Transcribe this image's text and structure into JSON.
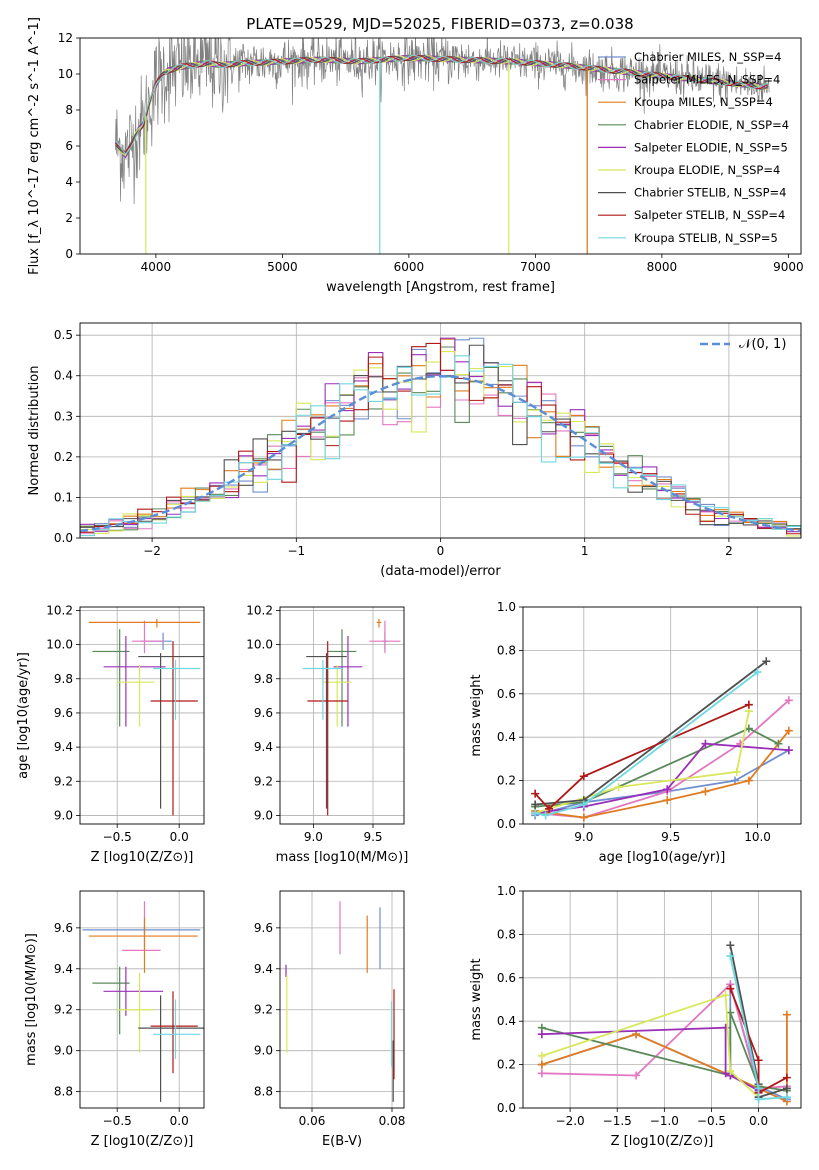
{
  "figure_title": "PLATE=0529, MJD=52025, FIBERID=0373, z=0.038",
  "palette": {
    "Chabrier MILES": "#6f8fd1",
    "Salpeter MILES": "#e377c2",
    "Kroupa MILES": "#e07b1f",
    "Chabrier ELODIE": "#5a8a5a",
    "Salpeter ELODIE": "#9b30b8",
    "Kroupa ELODIE": "#d8e85a",
    "Chabrier STELIB": "#505050",
    "Salpeter STELIB": "#b01818",
    "Kroupa STELIB": "#6fd8e0",
    "gaussian": "#5b8ed8"
  },
  "chart_data": [
    {
      "id": "spectrum",
      "type": "line",
      "title": "PLATE=0529, MJD=52025, FIBERID=0373, z=0.038",
      "xlabel": "wavelength [Angstrom, rest frame]",
      "ylabel": "Flux [f_λ 10^-17 erg cm^-2 s^-1 A^-1]",
      "xlim": [
        3400,
        9100
      ],
      "ylim": [
        0,
        12
      ],
      "xticks": [
        4000,
        5000,
        6000,
        7000,
        8000,
        9000
      ],
      "yticks": [
        0,
        2,
        4,
        6,
        8,
        10,
        12
      ],
      "grid": false,
      "legend_position": "right",
      "legend": [
        "Chabrier MILES, N_SSP=4",
        "Salpeter MILES, N_SSP=4",
        "Kroupa MILES, N_SSP=4",
        "Chabrier ELODIE, N_SSP=4",
        "Salpeter ELODIE, N_SSP=5",
        "Kroupa ELODIE, N_SSP=4",
        "Chabrier STELIB, N_SSP=4",
        "Salpeter STELIB, N_SSP=4",
        "Kroupa STELIB, N_SSP=5"
      ],
      "data_series": {
        "name": "data",
        "x": [
          3680,
          3720,
          3760,
          3800,
          3850,
          3900,
          3950,
          4000,
          4050,
          4100,
          4200,
          4300,
          4400,
          4500,
          4700,
          5000,
          5300,
          5600,
          6000,
          6400,
          6800,
          7200,
          7600,
          8000,
          8400,
          8800
        ],
        "y": [
          6.2,
          5.8,
          5.5,
          6.0,
          6.8,
          7.2,
          8.4,
          9.4,
          10.0,
          10.2,
          10.4,
          10.5,
          10.6,
          10.5,
          10.6,
          10.7,
          10.8,
          10.7,
          10.9,
          10.8,
          10.7,
          10.5,
          10.2,
          9.9,
          9.6,
          9.3
        ]
      }
    },
    {
      "id": "residuals",
      "type": "bar",
      "xlabel": "(data-model)/error",
      "ylabel": "Normed distribution",
      "xlim": [
        -2.5,
        2.5
      ],
      "ylim": [
        0,
        0.53
      ],
      "xticks": [
        -2,
        -1,
        0,
        1,
        2
      ],
      "yticks": [
        0.0,
        0.1,
        0.2,
        0.3,
        0.4,
        0.5
      ],
      "grid": true,
      "legend": [
        "N(0,1)"
      ],
      "legend_position": "upper right",
      "bin_width": 0.1,
      "series_note": "one histogram per model"
    },
    {
      "id": "age_vs_Z",
      "type": "scatter",
      "xlabel": "Z [log10(Z/Z⊙)]",
      "ylabel": "age [log10(age/yr)]",
      "xlim": [
        -0.8,
        0.2
      ],
      "ylim": [
        8.95,
        10.22
      ],
      "xticks": [
        -0.5,
        0.0
      ],
      "yticks": [
        9.0,
        9.2,
        9.4,
        9.6,
        9.8,
        10.0,
        10.2
      ],
      "grid": true,
      "points": [
        {
          "model": "Chabrier MILES",
          "x": -0.13,
          "xerr": [
            0.18,
            0.07
          ],
          "y": 10.02,
          "yerr": [
            0.05,
            0.05
          ]
        },
        {
          "model": "Salpeter MILES",
          "x": -0.28,
          "xerr": [
            0.1,
            0.16
          ],
          "y": 10.02,
          "yerr": [
            0.07,
            0.12
          ]
        },
        {
          "model": "Kroupa MILES",
          "x": -0.18,
          "xerr": [
            0.55,
            0.35
          ],
          "y": 10.13,
          "yerr": [
            0.03,
            0.02
          ]
        },
        {
          "model": "Chabrier ELODIE",
          "x": -0.48,
          "xerr": [
            0.22,
            0.08
          ],
          "y": 9.96,
          "yerr": [
            0.44,
            0.13
          ]
        },
        {
          "model": "Salpeter ELODIE",
          "x": -0.43,
          "xerr": [
            0.18,
            0.32
          ],
          "y": 9.87,
          "yerr": [
            0.35,
            0.18
          ]
        },
        {
          "model": "Kroupa ELODIE",
          "x": -0.32,
          "xerr": [
            0.18,
            0.12
          ],
          "y": 9.78,
          "yerr": [
            0.26,
            0.1
          ]
        },
        {
          "model": "Chabrier STELIB",
          "x": -0.15,
          "xerr": [
            0.18,
            0.35
          ],
          "y": 9.93,
          "yerr": [
            0.89,
            0.02
          ]
        },
        {
          "model": "Salpeter STELIB",
          "x": -0.05,
          "xerr": [
            0.18,
            0.2
          ],
          "y": 9.67,
          "yerr": [
            0.67,
            0.35
          ]
        },
        {
          "model": "Kroupa STELIB",
          "x": -0.03,
          "xerr": [
            0.18,
            0.2
          ],
          "y": 9.86,
          "yerr": [
            0.3,
            0.05
          ]
        }
      ]
    },
    {
      "id": "age_vs_mass",
      "type": "scatter",
      "xlabel": "mass [log10(M/M⊙)]",
      "ylabel": "",
      "xlim": [
        8.72,
        9.76
      ],
      "ylim": [
        8.95,
        10.22
      ],
      "xticks": [
        9.0,
        9.5
      ],
      "yticks": [
        9.0,
        9.2,
        9.4,
        9.6,
        9.8,
        10.0,
        10.2
      ],
      "grid": true,
      "points": [
        {
          "model": "Chabrier MILES",
          "x": 9.6,
          "xerr": [
            0.02,
            0.02
          ],
          "y": 10.02,
          "yerr": [
            0.05,
            0.05
          ]
        },
        {
          "model": "Salpeter MILES",
          "x": 9.6,
          "xerr": [
            0.13,
            0.13
          ],
          "y": 10.02,
          "yerr": [
            0.07,
            0.12
          ]
        },
        {
          "model": "Kroupa MILES",
          "x": 9.55,
          "xerr": [
            0.02,
            0.02
          ],
          "y": 10.13,
          "yerr": [
            0.03,
            0.02
          ]
        },
        {
          "model": "Chabrier ELODIE",
          "x": 9.24,
          "xerr": [
            0.12,
            0.12
          ],
          "y": 9.96,
          "yerr": [
            0.44,
            0.13
          ]
        },
        {
          "model": "Salpeter ELODIE",
          "x": 9.29,
          "xerr": [
            0.12,
            0.12
          ],
          "y": 9.87,
          "yerr": [
            0.35,
            0.18
          ]
        },
        {
          "model": "Kroupa ELODIE",
          "x": 9.2,
          "xerr": [
            0.12,
            0.12
          ],
          "y": 9.78,
          "yerr": [
            0.26,
            0.1
          ]
        },
        {
          "model": "Chabrier STELIB",
          "x": 9.11,
          "xerr": [
            0.17,
            0.17
          ],
          "y": 9.93,
          "yerr": [
            0.89,
            0.02
          ]
        },
        {
          "model": "Salpeter STELIB",
          "x": 9.12,
          "xerr": [
            0.17,
            0.17
          ],
          "y": 9.67,
          "yerr": [
            0.67,
            0.35
          ]
        },
        {
          "model": "Kroupa STELIB",
          "x": 9.08,
          "xerr": [
            0.17,
            0.17
          ],
          "y": 9.86,
          "yerr": [
            0.3,
            0.05
          ]
        }
      ]
    },
    {
      "id": "weight_vs_age",
      "type": "line",
      "xlabel": "age [log10(age/yr)]",
      "ylabel": "mass weight",
      "xlim": [
        8.65,
        10.25
      ],
      "ylim": [
        0,
        1
      ],
      "xticks": [
        9.0,
        9.5,
        10.0
      ],
      "yticks": [
        0.0,
        0.2,
        0.4,
        0.6,
        0.8,
        1.0
      ],
      "grid": true,
      "series": [
        {
          "model": "Chabrier MILES",
          "x": [
            8.72,
            9.0,
            9.48,
            9.87,
            10.18
          ],
          "y": [
            0.04,
            0.1,
            0.15,
            0.2,
            0.34
          ]
        },
        {
          "model": "Salpeter MILES",
          "x": [
            8.72,
            9.0,
            9.48,
            9.9,
            10.18
          ],
          "y": [
            0.05,
            0.03,
            0.15,
            0.37,
            0.57
          ]
        },
        {
          "model": "Kroupa MILES",
          "x": [
            8.72,
            9.0,
            9.48,
            9.7,
            9.95,
            10.18
          ],
          "y": [
            0.06,
            0.03,
            0.11,
            0.15,
            0.2,
            0.43
          ]
        },
        {
          "model": "Chabrier ELODIE",
          "x": [
            8.72,
            9.0,
            9.95,
            10.12
          ],
          "y": [
            0.08,
            0.1,
            0.44,
            0.37
          ]
        },
        {
          "model": "Salpeter ELODIE",
          "x": [
            8.72,
            9.0,
            9.48,
            9.7,
            10.18
          ],
          "y": [
            0.05,
            0.08,
            0.16,
            0.37,
            0.34
          ]
        },
        {
          "model": "Kroupa ELODIE",
          "x": [
            8.72,
            9.2,
            9.88,
            9.95
          ],
          "y": [
            0.05,
            0.17,
            0.24,
            0.52
          ]
        },
        {
          "model": "Chabrier STELIB",
          "x": [
            8.72,
            9.0,
            10.05
          ],
          "y": [
            0.09,
            0.11,
            0.75
          ]
        },
        {
          "model": "Salpeter STELIB",
          "x": [
            8.72,
            8.8,
            9.0,
            9.95
          ],
          "y": [
            0.14,
            0.07,
            0.22,
            0.55
          ]
        },
        {
          "model": "Kroupa STELIB",
          "x": [
            8.72,
            8.78,
            9.0,
            10.0
          ],
          "y": [
            0.05,
            0.04,
            0.09,
            0.7
          ]
        }
      ]
    },
    {
      "id": "mass_vs_Z",
      "type": "scatter",
      "xlabel": "Z [log10(Z/Z⊙)]",
      "ylabel": "mass [log10(M/M⊙)]",
      "xlim": [
        -0.8,
        0.2
      ],
      "ylim": [
        8.72,
        9.78
      ],
      "xticks": [
        -0.5,
        0.0
      ],
      "yticks": [
        8.8,
        9.0,
        9.2,
        9.4,
        9.6
      ],
      "grid": true,
      "points": [
        {
          "model": "Chabrier MILES",
          "x": -0.28,
          "xerr": [
            0.5,
            0.45
          ],
          "y": 9.59,
          "yerr": [
            0.02,
            0.02
          ]
        },
        {
          "model": "Salpeter MILES",
          "x": -0.28,
          "xerr": [
            0.18,
            0.13
          ],
          "y": 9.49,
          "yerr": [
            0.0,
            0.24
          ]
        },
        {
          "model": "Kroupa MILES",
          "x": -0.28,
          "xerr": [
            0.45,
            0.43
          ],
          "y": 9.56,
          "yerr": [
            0.18,
            0.09
          ]
        },
        {
          "model": "Chabrier ELODIE",
          "x": -0.48,
          "xerr": [
            0.22,
            0.08
          ],
          "y": 9.33,
          "yerr": [
            0.25,
            0.08
          ]
        },
        {
          "model": "Salpeter ELODIE",
          "x": -0.43,
          "xerr": [
            0.18,
            0.3
          ],
          "y": 9.29,
          "yerr": [
            0.12,
            0.12
          ]
        },
        {
          "model": "Kroupa ELODIE",
          "x": -0.32,
          "xerr": [
            0.18,
            0.12
          ],
          "y": 9.2,
          "yerr": [
            0.21,
            0.18
          ]
        },
        {
          "model": "Chabrier STELIB",
          "x": -0.15,
          "xerr": [
            0.18,
            0.35
          ],
          "y": 9.11,
          "yerr": [
            0.36,
            0.16
          ]
        },
        {
          "model": "Salpeter STELIB",
          "x": -0.05,
          "xerr": [
            0.18,
            0.2
          ],
          "y": 9.12,
          "yerr": [
            0.23,
            0.17
          ]
        },
        {
          "model": "Kroupa STELIB",
          "x": -0.03,
          "xerr": [
            0.18,
            0.2
          ],
          "y": 9.08,
          "yerr": [
            0.12,
            0.17
          ]
        }
      ]
    },
    {
      "id": "mass_vs_ebv",
      "type": "scatter",
      "xlabel": "E(B-V)",
      "ylabel": "",
      "xlim": [
        0.052,
        0.083
      ],
      "ylim": [
        8.72,
        9.78
      ],
      "xticks": [
        0.06,
        0.08
      ],
      "yticks": [
        8.8,
        9.0,
        9.2,
        9.4,
        9.6
      ],
      "grid": true,
      "points": [
        {
          "model": "Salpeter MILES",
          "x": 0.067,
          "y": 9.6,
          "yerr": [
            0.13,
            0.13
          ]
        },
        {
          "model": "Kroupa MILES",
          "x": 0.0738,
          "y": 9.52,
          "yerr": [
            0.14,
            0.14
          ]
        },
        {
          "model": "Chabrier MILES",
          "x": 0.077,
          "y": 9.55,
          "yerr": [
            0.15,
            0.15
          ]
        },
        {
          "model": "Salpeter ELODIE",
          "x": 0.0535,
          "y": 9.39,
          "yerr": [
            0.03,
            0.03
          ]
        },
        {
          "model": "Kroupa ELODIE",
          "x": 0.0537,
          "y": 9.18,
          "yerr": [
            0.19,
            0.19
          ]
        },
        {
          "model": "Chabrier STELIB",
          "x": 0.0803,
          "y": 8.9,
          "yerr": [
            0.15,
            0.15
          ]
        },
        {
          "model": "Salpeter STELIB",
          "x": 0.0805,
          "y": 9.08,
          "yerr": [
            0.22,
            0.22
          ]
        },
        {
          "model": "Kroupa STELIB",
          "x": 0.0799,
          "y": 9.08,
          "yerr": [
            0.16,
            0.16
          ]
        }
      ]
    },
    {
      "id": "weight_vs_Z",
      "type": "line",
      "xlabel": "Z [log10(Z/Z⊙)]",
      "ylabel": "mass weight",
      "xlim": [
        -2.5,
        0.45
      ],
      "ylim": [
        0,
        1
      ],
      "xticks": [
        -2.0,
        -1.5,
        -1.0,
        -0.5,
        0.0
      ],
      "yticks": [
        0.0,
        0.2,
        0.4,
        0.6,
        0.8,
        1.0
      ],
      "grid": true,
      "series": [
        {
          "model": "Chabrier MILES",
          "x": [
            -2.3,
            -1.3,
            -0.3,
            -0.3,
            0.0,
            0.3
          ],
          "y": [
            0.2,
            0.34,
            0.15,
            0.57,
            0.1,
            0.04
          ]
        },
        {
          "model": "Salpeter MILES",
          "x": [
            -2.3,
            -1.3,
            -0.3,
            0.0,
            0.3
          ],
          "y": [
            0.16,
            0.15,
            0.57,
            0.09,
            0.1
          ]
        },
        {
          "model": "Kroupa MILES",
          "x": [
            -2.3,
            -1.3,
            -0.3,
            0.3,
            0.3
          ],
          "y": [
            0.2,
            0.34,
            0.15,
            0.03,
            0.43
          ]
        },
        {
          "model": "Chabrier ELODIE",
          "x": [
            -2.3,
            -0.3,
            -0.3,
            0.0,
            0.3
          ],
          "y": [
            0.37,
            0.15,
            0.44,
            0.1,
            0.08
          ]
        },
        {
          "model": "Salpeter ELODIE",
          "x": [
            -2.3,
            -0.35,
            -0.35,
            -0.3,
            0.0
          ],
          "y": [
            0.34,
            0.37,
            0.16,
            0.15,
            0.08
          ]
        },
        {
          "model": "Kroupa ELODIE",
          "x": [
            -2.3,
            -0.35,
            -0.3,
            0.0
          ],
          "y": [
            0.24,
            0.52,
            0.17,
            0.05
          ]
        },
        {
          "model": "Chabrier STELIB",
          "x": [
            -0.3,
            0.0,
            0.0,
            0.3
          ],
          "y": [
            0.75,
            0.11,
            0.05,
            0.09
          ]
        },
        {
          "model": "Salpeter STELIB",
          "x": [
            -0.3,
            0.0,
            0.0,
            0.3
          ],
          "y": [
            0.55,
            0.22,
            0.07,
            0.14
          ]
        },
        {
          "model": "Kroupa STELIB",
          "x": [
            -0.3,
            0.0,
            0.0,
            0.3
          ],
          "y": [
            0.7,
            0.09,
            0.04,
            0.05
          ]
        }
      ]
    }
  ]
}
